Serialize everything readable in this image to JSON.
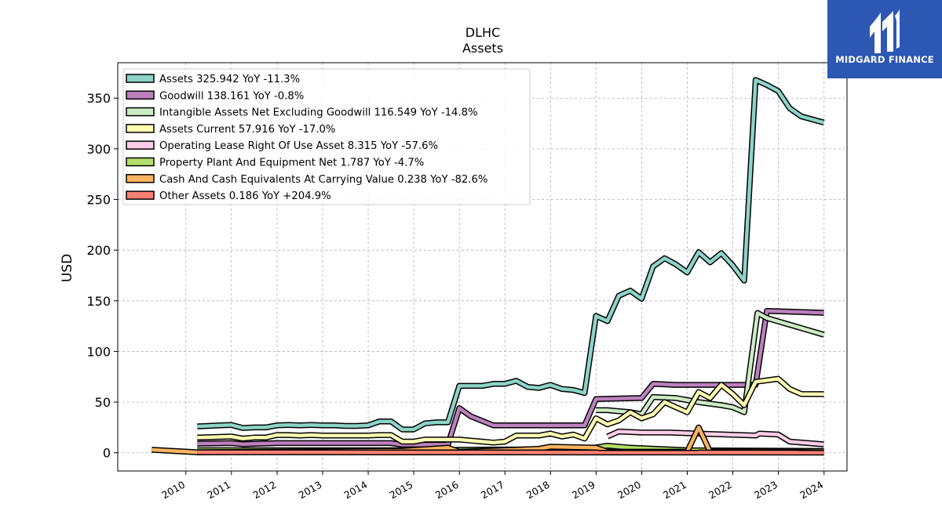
{
  "chart_data": {
    "type": "line",
    "title": "DLHC",
    "subtitle": "Assets",
    "xlabel": "",
    "ylabel": "USD",
    "xlim": [
      "2009-01-01",
      "2025-01-01"
    ],
    "ylim": [
      -18,
      385
    ],
    "x_ticks": [
      "2010",
      "2011",
      "2012",
      "2013",
      "2014",
      "2015",
      "2016",
      "2017",
      "2018",
      "2019",
      "2020",
      "2021",
      "2022",
      "2023",
      "2024"
    ],
    "y_ticks": [
      0,
      50,
      100,
      150,
      200,
      250,
      300,
      350
    ],
    "grid": true,
    "legend_position": "top-left",
    "series": [
      {
        "name": "Assets",
        "legend": "Assets  325.942 YoY -11.3%",
        "color": "#8dd3c7",
        "points": [
          [
            "2010-09-30",
            26
          ],
          [
            "2011-03-31",
            27
          ],
          [
            "2011-06-30",
            27.5
          ],
          [
            "2011-09-30",
            24.5
          ],
          [
            "2011-12-31",
            25
          ],
          [
            "2012-03-31",
            25
          ],
          [
            "2012-06-30",
            27
          ],
          [
            "2012-09-30",
            27.5
          ],
          [
            "2012-12-31",
            27
          ],
          [
            "2013-03-31",
            27.5
          ],
          [
            "2013-06-30",
            27
          ],
          [
            "2013-09-30",
            27
          ],
          [
            "2013-12-31",
            26.5
          ],
          [
            "2014-03-31",
            26.5
          ],
          [
            "2014-06-30",
            27
          ],
          [
            "2014-09-30",
            31
          ],
          [
            "2014-12-31",
            31
          ],
          [
            "2015-03-31",
            23
          ],
          [
            "2015-06-30",
            23
          ],
          [
            "2015-09-30",
            29
          ],
          [
            "2015-12-31",
            30
          ],
          [
            "2016-03-31",
            30
          ],
          [
            "2016-06-30",
            66
          ],
          [
            "2016-09-30",
            66
          ],
          [
            "2016-12-31",
            66
          ],
          [
            "2017-03-31",
            68
          ],
          [
            "2017-06-30",
            68
          ],
          [
            "2017-09-30",
            71
          ],
          [
            "2017-12-31",
            65
          ],
          [
            "2018-03-31",
            64
          ],
          [
            "2018-06-30",
            67
          ],
          [
            "2018-09-30",
            63
          ],
          [
            "2018-12-31",
            62
          ],
          [
            "2019-03-31",
            59
          ],
          [
            "2019-06-30",
            135
          ],
          [
            "2019-09-30",
            130
          ],
          [
            "2019-12-31",
            155
          ],
          [
            "2020-03-31",
            160
          ],
          [
            "2020-06-30",
            152
          ],
          [
            "2020-09-30",
            184
          ],
          [
            "2020-12-31",
            192
          ],
          [
            "2021-03-31",
            186
          ],
          [
            "2021-06-30",
            178
          ],
          [
            "2021-09-30",
            198
          ],
          [
            "2021-12-31",
            188
          ],
          [
            "2022-03-31",
            197
          ],
          [
            "2022-06-30",
            185
          ],
          [
            "2022-09-30",
            170
          ],
          [
            "2022-12-31",
            368
          ],
          [
            "2023-03-31",
            363
          ],
          [
            "2023-06-30",
            357
          ],
          [
            "2023-09-30",
            340
          ],
          [
            "2023-12-31",
            332
          ],
          [
            "2024-06-30",
            325.9
          ]
        ]
      },
      {
        "name": "Goodwill",
        "legend": "Goodwill  138.161 YoY -0.8%",
        "color": "#bc80bd",
        "points": [
          [
            "2010-09-30",
            9
          ],
          [
            "2011-06-30",
            9.5
          ],
          [
            "2011-09-30",
            8.5
          ],
          [
            "2012-06-30",
            9.5
          ],
          [
            "2014-12-31",
            9.5
          ],
          [
            "2015-03-31",
            8
          ],
          [
            "2016-03-31",
            8
          ],
          [
            "2016-06-30",
            44
          ],
          [
            "2016-09-30",
            36
          ],
          [
            "2017-03-31",
            27
          ],
          [
            "2019-03-31",
            27
          ],
          [
            "2019-06-30",
            53
          ],
          [
            "2020-06-30",
            54
          ],
          [
            "2020-09-30",
            68
          ],
          [
            "2021-03-31",
            67
          ],
          [
            "2022-12-31",
            67
          ],
          [
            "2023-03-31",
            140
          ],
          [
            "2024-06-30",
            138.2
          ]
        ]
      },
      {
        "name": "Intangible Assets Net Excluding Goodwill",
        "legend": "Intangible Assets Net Excluding Goodwill  116.549 YoY -14.8%",
        "color": "#ccebc5",
        "points": [
          [
            "2019-06-30",
            42
          ],
          [
            "2019-09-30",
            42
          ],
          [
            "2020-03-31",
            40
          ],
          [
            "2020-06-30",
            38
          ],
          [
            "2020-09-30",
            55
          ],
          [
            "2021-03-31",
            54
          ],
          [
            "2021-06-30",
            52
          ],
          [
            "2021-09-30",
            50
          ],
          [
            "2022-03-31",
            47
          ],
          [
            "2022-06-30",
            45
          ],
          [
            "2022-09-30",
            40
          ],
          [
            "2023-01-15",
            138
          ],
          [
            "2023-03-31",
            133
          ],
          [
            "2024-06-30",
            116.5
          ]
        ]
      },
      {
        "name": "Assets Current",
        "legend": "Assets Current  57.916 YoY -17.0%",
        "color": "#ffffb3",
        "points": [
          [
            "2010-09-30",
            15
          ],
          [
            "2011-06-30",
            16
          ],
          [
            "2011-09-30",
            14
          ],
          [
            "2011-12-31",
            15
          ],
          [
            "2012-03-31",
            15
          ],
          [
            "2012-06-30",
            17.5
          ],
          [
            "2012-09-30",
            17.5
          ],
          [
            "2012-12-31",
            17
          ],
          [
            "2013-03-31",
            17.5
          ],
          [
            "2013-06-30",
            17
          ],
          [
            "2013-09-30",
            17
          ],
          [
            "2013-12-31",
            17
          ],
          [
            "2014-03-31",
            17
          ],
          [
            "2014-06-30",
            17
          ],
          [
            "2014-09-30",
            17.5
          ],
          [
            "2014-12-31",
            17.5
          ],
          [
            "2015-03-31",
            11
          ],
          [
            "2015-06-30",
            11
          ],
          [
            "2015-09-30",
            13
          ],
          [
            "2016-03-31",
            13
          ],
          [
            "2016-06-30",
            13
          ],
          [
            "2016-09-30",
            12
          ],
          [
            "2016-12-31",
            11
          ],
          [
            "2017-03-31",
            10
          ],
          [
            "2017-06-30",
            11
          ],
          [
            "2017-09-30",
            17
          ],
          [
            "2017-12-31",
            17
          ],
          [
            "2018-03-31",
            17
          ],
          [
            "2018-06-30",
            19
          ],
          [
            "2018-09-30",
            16
          ],
          [
            "2018-12-31",
            18
          ],
          [
            "2019-03-31",
            14
          ],
          [
            "2019-06-30",
            34
          ],
          [
            "2019-09-30",
            28
          ],
          [
            "2019-12-31",
            32
          ],
          [
            "2020-03-31",
            40
          ],
          [
            "2020-06-30",
            34
          ],
          [
            "2020-09-30",
            38
          ],
          [
            "2020-12-31",
            50
          ],
          [
            "2021-03-31",
            45
          ],
          [
            "2021-06-30",
            40
          ],
          [
            "2021-09-30",
            60
          ],
          [
            "2021-12-31",
            54
          ],
          [
            "2022-03-31",
            67
          ],
          [
            "2022-06-30",
            58
          ],
          [
            "2022-09-30",
            47
          ],
          [
            "2022-12-31",
            70
          ],
          [
            "2023-06-30",
            73
          ],
          [
            "2023-09-30",
            63
          ],
          [
            "2023-12-31",
            58
          ],
          [
            "2024-06-30",
            57.9
          ]
        ]
      },
      {
        "name": "Operating Lease Right Of Use Asset",
        "legend": "Operating Lease Right Of Use Asset  8.315 YoY -57.6%",
        "color": "#fccde5",
        "points": [
          [
            "2019-09-30",
            16
          ],
          [
            "2019-12-31",
            21
          ],
          [
            "2020-06-30",
            20
          ],
          [
            "2021-01-31",
            20
          ],
          [
            "2022-12-31",
            17
          ],
          [
            "2023-01-31",
            19
          ],
          [
            "2023-06-30",
            18
          ],
          [
            "2023-09-30",
            11
          ],
          [
            "2024-06-30",
            8.3
          ]
        ]
      },
      {
        "name": "Property Plant And Equipment Net",
        "legend": "Property Plant And Equipment Net  1.787 YoY -4.7%",
        "color": "#b3de69",
        "points": [
          [
            "2010-09-30",
            2.5
          ],
          [
            "2015-12-31",
            2.5
          ],
          [
            "2016-06-30",
            3
          ],
          [
            "2019-03-31",
            3.5
          ],
          [
            "2019-09-30",
            7
          ],
          [
            "2020-03-31",
            5
          ],
          [
            "2021-06-30",
            2.5
          ],
          [
            "2023-06-30",
            2
          ],
          [
            "2024-06-30",
            1.8
          ]
        ]
      },
      {
        "name": "Cash And Cash Equivalents At Carrying Value",
        "legend": "Cash And Cash Equivalents At Carrying Value  0.238 YoY -82.6%",
        "color": "#fdb462",
        "points": [
          [
            "2009-09-30",
            3
          ],
          [
            "2010-09-30",
            0.5
          ],
          [
            "2014-09-30",
            2
          ],
          [
            "2015-03-31",
            2
          ],
          [
            "2016-03-31",
            5
          ],
          [
            "2016-06-30",
            1
          ],
          [
            "2017-09-30",
            3
          ],
          [
            "2018-03-31",
            4
          ],
          [
            "2018-06-30",
            6
          ],
          [
            "2019-06-30",
            5
          ],
          [
            "2019-09-30",
            1
          ],
          [
            "2021-06-30",
            1
          ],
          [
            "2021-09-30",
            25
          ],
          [
            "2021-12-31",
            1
          ],
          [
            "2022-12-31",
            1.5
          ],
          [
            "2024-06-30",
            0.24
          ]
        ]
      },
      {
        "name": "Other Assets",
        "legend": "Other Assets  0.186 YoY +204.9%",
        "color": "#fb8072",
        "points": [
          [
            "2010-09-30",
            0.5
          ],
          [
            "2024-06-30",
            0.19
          ]
        ]
      }
    ]
  },
  "logo": {
    "text": "MIDGARD FINANCE",
    "color": "#2c57b3"
  }
}
